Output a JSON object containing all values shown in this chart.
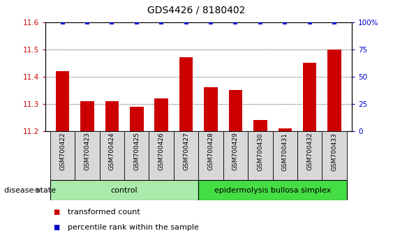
{
  "title": "GDS4426 / 8180402",
  "samples": [
    "GSM700422",
    "GSM700423",
    "GSM700424",
    "GSM700425",
    "GSM700426",
    "GSM700427",
    "GSM700428",
    "GSM700429",
    "GSM700430",
    "GSM700431",
    "GSM700432",
    "GSM700433"
  ],
  "bar_values": [
    11.42,
    11.31,
    11.31,
    11.29,
    11.32,
    11.47,
    11.36,
    11.35,
    11.24,
    11.21,
    11.45,
    11.5
  ],
  "bar_base": 11.2,
  "percentile_values": [
    100,
    100,
    100,
    100,
    100,
    100,
    100,
    100,
    100,
    100,
    100,
    100
  ],
  "bar_color": "#cc0000",
  "percentile_color": "#0000cc",
  "ylim_left": [
    11.2,
    11.6
  ],
  "ylim_right": [
    0,
    100
  ],
  "yticks_left": [
    11.2,
    11.3,
    11.4,
    11.5,
    11.6
  ],
  "yticks_right": [
    0,
    25,
    50,
    75,
    100
  ],
  "groups": [
    {
      "label": "control",
      "start": 0,
      "end": 5,
      "color": "#aaeaaa"
    },
    {
      "label": "epidermolysis bullosa simplex",
      "start": 6,
      "end": 11,
      "color": "#44dd44"
    }
  ],
  "group_label_prefix": "disease state",
  "legend_items": [
    {
      "color": "#cc0000",
      "marker": "s",
      "label": "transformed count"
    },
    {
      "color": "#0000cc",
      "marker": "s",
      "label": "percentile rank within the sample"
    }
  ],
  "bar_width": 0.55,
  "tick_label_color_left": "#cc0000",
  "tick_label_color_right": "#0000cc",
  "sample_box_color": "#d8d8d8"
}
